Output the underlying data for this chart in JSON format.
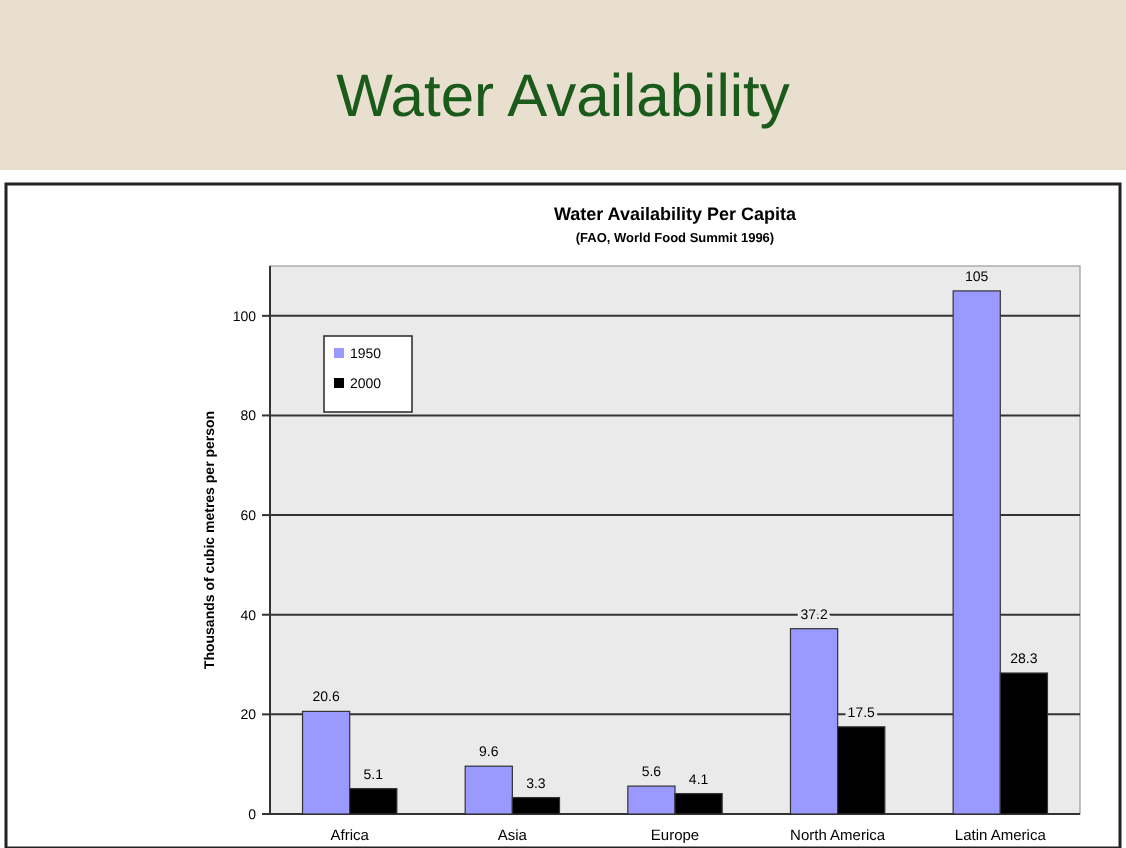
{
  "chart_data": {
    "type": "bar",
    "title": "Water Availability Per Capita",
    "subtitle": "(FAO, World Food Summit 1996)",
    "annotations": [
      "Water Availability"
    ],
    "ylabel": "Thousands of cubic metres per person",
    "categories": [
      "Africa",
      "Asia",
      "Europe",
      "North America",
      "Latin America"
    ],
    "series": [
      {
        "name": "1950",
        "color": "#9999ff",
        "values": [
          20.6,
          9.6,
          5.6,
          37.2,
          105
        ]
      },
      {
        "name": "2000",
        "color": "#000000",
        "values": [
          5.1,
          3.3,
          4.1,
          17.5,
          28.3
        ]
      }
    ],
    "ylim": [
      0,
      110
    ],
    "yticks": [
      0,
      20,
      40,
      60,
      80,
      100
    ],
    "grid": "y",
    "data_labels": true,
    "legend": "top left"
  }
}
